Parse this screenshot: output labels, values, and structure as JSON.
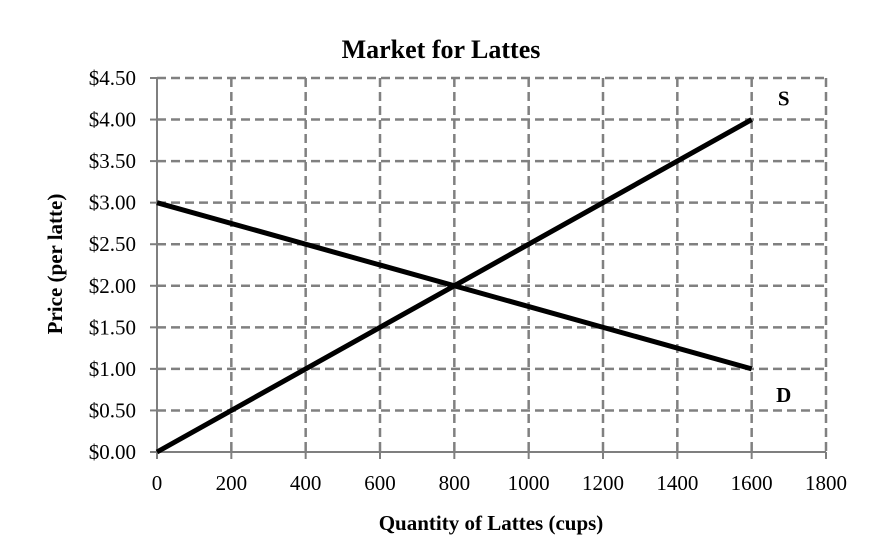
{
  "chart_data": {
    "type": "line",
    "title": "Market for Lattes",
    "xlabel": "Quantity of Lattes (cups)",
    "ylabel": "Price (per latte)",
    "xlim": [
      0,
      1800
    ],
    "ylim": [
      0,
      4.5
    ],
    "x_ticks": [
      0,
      200,
      400,
      600,
      800,
      1000,
      1200,
      1400,
      1600,
      1800
    ],
    "x_tick_labels": [
      "0",
      "200",
      "400",
      "600",
      "800",
      "1000",
      "1200",
      "1400",
      "1600",
      "1800"
    ],
    "y_ticks": [
      0,
      0.5,
      1,
      1.5,
      2,
      2.5,
      3,
      3.5,
      4,
      4.5
    ],
    "y_tick_labels": [
      "$0.00",
      "$0.50",
      "$1.00",
      "$1.50",
      "$2.00",
      "$2.50",
      "$3.00",
      "$3.50",
      "$4.00",
      "$4.50"
    ],
    "grid": true,
    "grid_style": "dashed",
    "grid_color": "#808080",
    "line_color": "#000000",
    "series": [
      {
        "name": "S",
        "x": [
          0,
          1600
        ],
        "y": [
          0,
          4
        ]
      },
      {
        "name": "D",
        "x": [
          0,
          1600
        ],
        "y": [
          3,
          1
        ]
      }
    ]
  }
}
